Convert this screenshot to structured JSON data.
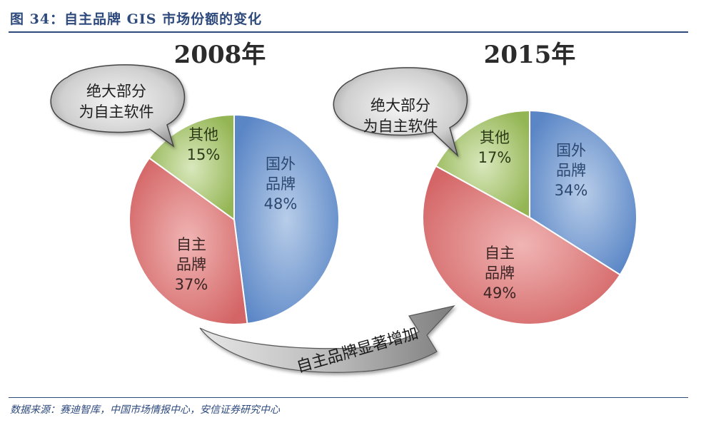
{
  "figure": {
    "title": "图 34：自主品牌 GIS 市场份额的变化",
    "source": "数据来源：赛迪智库，中国市场情报中心，安信证券研究中心"
  },
  "colors": {
    "foreign": "#5a86c6",
    "domestic": "#d46566",
    "other": "#93b553",
    "title": "#2e4a7d"
  },
  "chart_data": [
    {
      "type": "pie",
      "title": "2008年",
      "slices": [
        {
          "name_lines": [
            "国外",
            "品牌"
          ],
          "value": 48,
          "label": "48%",
          "color_key": "foreign"
        },
        {
          "name_lines": [
            "自主",
            "品牌"
          ],
          "value": 37,
          "label": "37%",
          "color_key": "domestic"
        },
        {
          "name_lines": [
            "其他"
          ],
          "value": 15,
          "label": "15%",
          "color_key": "other"
        }
      ],
      "callout": [
        "绝大部分",
        "为自主软件"
      ]
    },
    {
      "type": "pie",
      "title": "2015年",
      "slices": [
        {
          "name_lines": [
            "国外",
            "品牌"
          ],
          "value": 34,
          "label": "34%",
          "color_key": "foreign"
        },
        {
          "name_lines": [
            "自主",
            "品牌"
          ],
          "value": 49,
          "label": "49%",
          "color_key": "domestic"
        },
        {
          "name_lines": [
            "其他"
          ],
          "value": 17,
          "label": "17%",
          "color_key": "other"
        }
      ],
      "callout": [
        "绝大部分",
        "为自主软件"
      ]
    }
  ],
  "annotation": {
    "arrow_text": "自主品牌显著增加"
  }
}
